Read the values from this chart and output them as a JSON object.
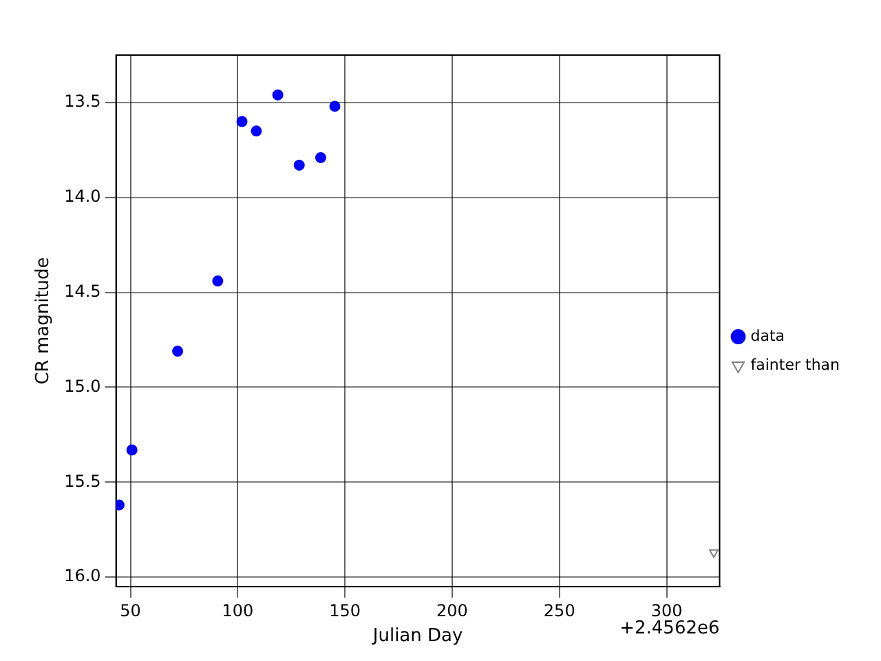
{
  "chart_data": {
    "type": "scatter",
    "xlabel": "Julian Day",
    "ylabel": "CR magnitude",
    "xlim": [
      43.3,
      324.7
    ],
    "ylim": [
      16.05,
      13.25
    ],
    "xticks": [
      50,
      100,
      150,
      200,
      250,
      300
    ],
    "yticks": [
      {
        "value": 13.5,
        "label": "13.5"
      },
      {
        "value": 14,
        "label": "14.0"
      },
      {
        "value": 14.5,
        "label": "14.5"
      },
      {
        "value": 15,
        "label": "15.0"
      },
      {
        "value": 15.5,
        "label": "15.5"
      },
      {
        "value": 16,
        "label": "16.0"
      }
    ],
    "series": [
      {
        "name": "data",
        "color": "#0000ff",
        "marker": "circle",
        "x": [
          44.7,
          50.7,
          72,
          90.7,
          102,
          108.7,
          118.7,
          128.7,
          138.7,
          145.3
        ],
        "values": [
          15.62,
          15.33,
          14.81,
          14.44,
          13.6,
          13.65,
          13.46,
          13.83,
          13.79,
          13.52
        ]
      },
      {
        "name": "fainter than",
        "color": "#808080",
        "marker": "triangle",
        "x": [
          322
        ],
        "values": [
          15.87
        ]
      }
    ],
    "grid": true,
    "legend": "right",
    "annotations": [
      "+2.4562e6"
    ]
  }
}
